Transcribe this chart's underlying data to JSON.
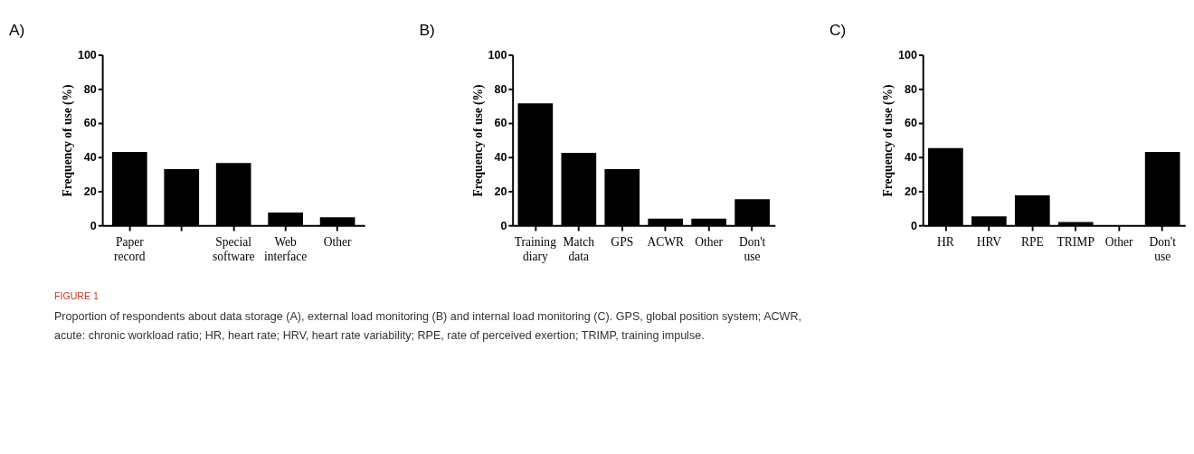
{
  "chart_data": [
    {
      "type": "bar",
      "title": "A)",
      "ylabel": "Frequency of use (%)",
      "categories": [
        "Paper record",
        null,
        "Special software",
        "Web interface",
        "Other"
      ],
      "values": [
        43,
        33,
        36.5,
        7.5,
        4.8
      ],
      "color": "#000000",
      "ylim": [
        0,
        100
      ],
      "yticks": [
        0,
        20,
        40,
        60,
        80,
        100
      ],
      "grid": false,
      "annotations": [
        "FIGURE 1",
        "Proportion of respondents about data storage (A), external load monitoring (B) and internal load monitoring (C). GPS, global position system; ACWR,",
        "acute: chronic workload ratio; HR, heart rate; HRV, heart rate variability; RPE, rate of perceived exertion; TRIMP, training impulse."
      ]
    },
    {
      "type": "bar",
      "title": "B)",
      "ylabel": "Frequency of use (%)",
      "categories": [
        "Training diary",
        "Match data",
        "GPS",
        "ACWR",
        "Other",
        "Don't use"
      ],
      "values": [
        71.5,
        42.5,
        33,
        4,
        4,
        15.3
      ],
      "color": "#000000",
      "ylim": [
        0,
        100
      ],
      "yticks": [
        0,
        20,
        40,
        60,
        80,
        100
      ],
      "grid": false
    },
    {
      "type": "bar",
      "title": "C)",
      "ylabel": "Frequency of use (%)",
      "categories": [
        "HR",
        "HRV",
        "RPE",
        "TRIMP",
        "Other",
        "Don't use"
      ],
      "values": [
        45.3,
        5.3,
        17.6,
        2,
        0,
        43
      ],
      "color": "#000000",
      "ylim": [
        0,
        100
      ],
      "yticks": [
        0,
        20,
        40,
        60,
        80,
        100
      ],
      "grid": false
    }
  ]
}
